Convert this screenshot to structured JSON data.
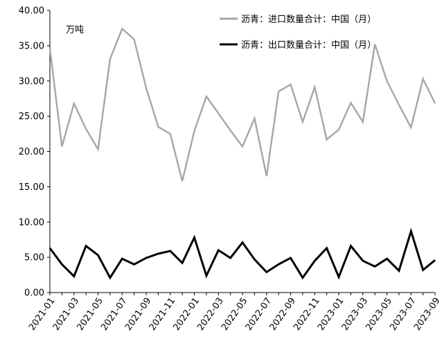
{
  "chart_data": {
    "type": "line",
    "unit_label": "万吨",
    "ylim": [
      0,
      40
    ],
    "y_ticks": [
      "0.00",
      "5.00",
      "10.00",
      "15.00",
      "20.00",
      "25.00",
      "30.00",
      "35.00",
      "40.00"
    ],
    "x": [
      "2021-01",
      "2021-02",
      "2021-03",
      "2021-04",
      "2021-05",
      "2021-06",
      "2021-07",
      "2021-08",
      "2021-09",
      "2021-10",
      "2021-11",
      "2021-12",
      "2022-01",
      "2022-02",
      "2022-03",
      "2022-04",
      "2022-05",
      "2022-06",
      "2022-07",
      "2022-08",
      "2022-09",
      "2022-10",
      "2022-11",
      "2022-12",
      "2023-01",
      "2023-02",
      "2023-03",
      "2023-04",
      "2023-05",
      "2023-06",
      "2023-07",
      "2023-08",
      "2023-09"
    ],
    "x_tick_labels": [
      "2021-01",
      "2021-03",
      "2021-05",
      "2021-07",
      "2021-09",
      "2021-11",
      "2022-01",
      "2022-03",
      "2022-05",
      "2022-07",
      "2022-09",
      "2022-11",
      "2023-01",
      "2023-03",
      "2023-05",
      "2023-07",
      "2023-09"
    ],
    "grid": false,
    "legend_position": "top-right",
    "series": [
      {
        "name": "沥青：进口数量合计：中国（月）",
        "color": "#a6a6a6",
        "values": [
          34.6,
          20.7,
          26.8,
          23.2,
          20.3,
          33.1,
          37.4,
          35.9,
          29.0,
          23.5,
          22.5,
          15.8,
          22.9,
          27.8,
          25.4,
          23.0,
          20.7,
          24.7,
          16.5,
          28.5,
          29.5,
          24.2,
          29.1,
          21.7,
          23.1,
          26.9,
          24.2,
          35.2,
          30.0,
          26.6,
          23.4,
          30.3,
          26.8
        ]
      },
      {
        "name": "沥青：出口数量合计：中国（月）",
        "color": "#000000",
        "values": [
          6.3,
          4.0,
          2.3,
          6.6,
          5.3,
          2.1,
          4.8,
          4.0,
          4.9,
          5.5,
          5.9,
          4.2,
          7.8,
          2.4,
          6.0,
          4.9,
          7.1,
          4.7,
          2.9,
          4.0,
          4.9,
          2.1,
          4.5,
          6.3,
          2.2,
          6.6,
          4.5,
          3.7,
          4.8,
          3.1,
          8.7,
          3.2,
          4.6
        ]
      }
    ]
  }
}
